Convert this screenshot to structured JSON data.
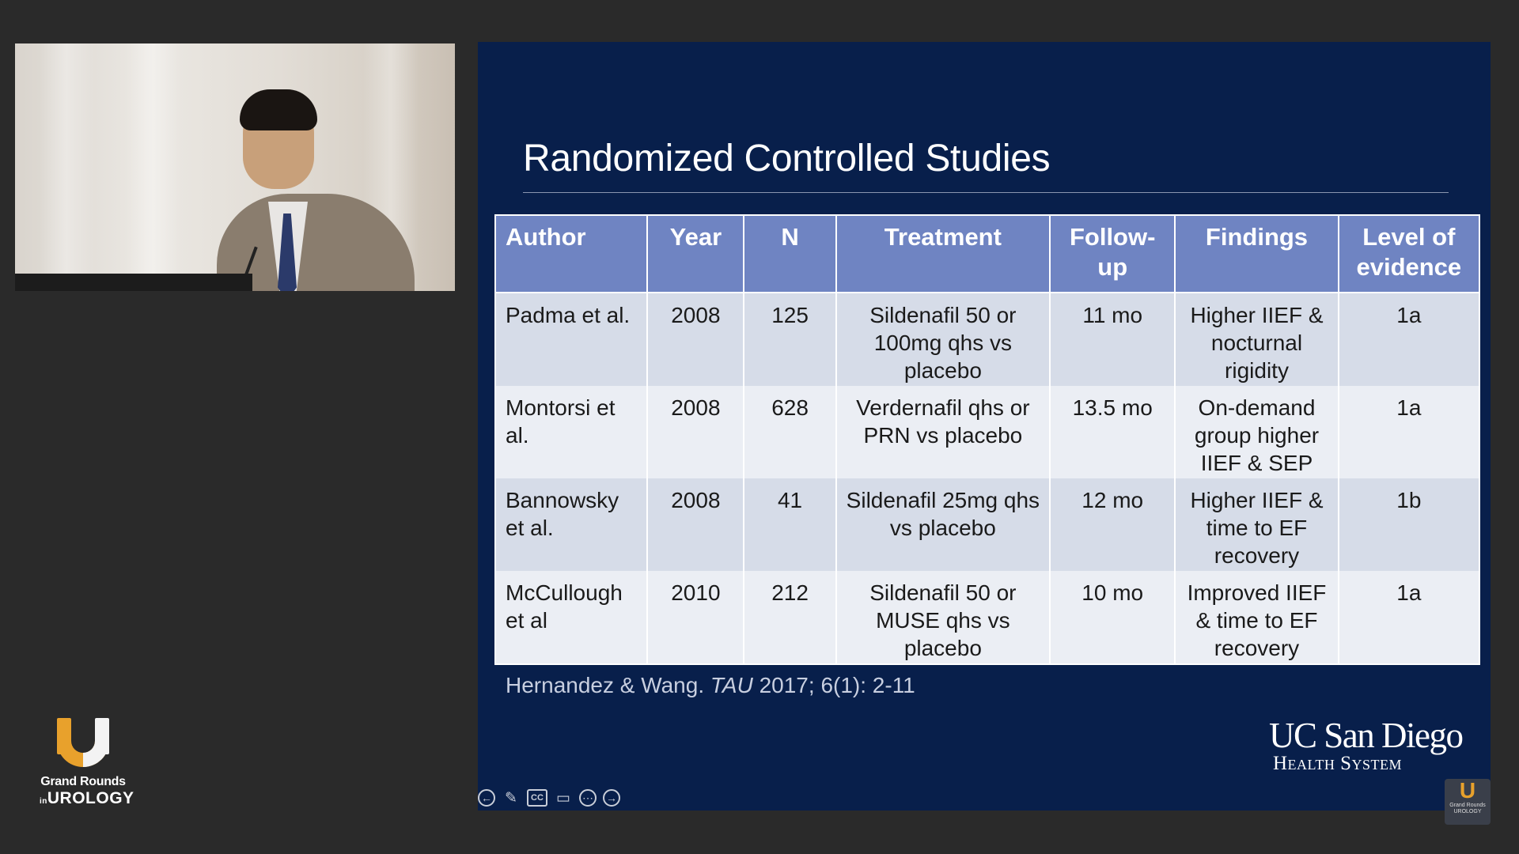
{
  "logo": {
    "line1": "Grand Rounds",
    "line2_prefix": "in",
    "line2": "UROLOGY"
  },
  "slide": {
    "title": "Randomized Controlled Studies",
    "table": {
      "headers": [
        "Author",
        "Year",
        "N",
        "Treatment",
        "Follow-up",
        "Findings",
        "Level of evidence"
      ],
      "rows": [
        [
          "Padma et al.",
          "2008",
          "125",
          "Sildenafil 50 or 100mg qhs vs placebo",
          "11 mo",
          "Higher IIEF & nocturnal rigidity",
          "1a"
        ],
        [
          "Montorsi et al.",
          "2008",
          "628",
          "Verdernafil qhs or PRN vs placebo",
          "13.5 mo",
          "On-demand group higher IIEF & SEP",
          "1a"
        ],
        [
          "Bannowsky et al.",
          "2008",
          "41",
          "Sildenafil 25mg qhs vs placebo",
          "12 mo",
          "Higher IIEF & time to EF recovery",
          "1b"
        ],
        [
          "McCullough et al",
          "2010",
          "212",
          "Sildenafil 50 or MUSE qhs vs placebo",
          "10 mo",
          "Improved IIEF & time to EF recovery",
          "1a"
        ]
      ]
    },
    "citation": {
      "authors": "Hernandez & Wang.",
      "journal": "TAU",
      "ref": "2017; 6(1): 2-11"
    },
    "institution": {
      "name": "UC San Diego",
      "sub": "Health System"
    }
  },
  "controls": {
    "prev": "←",
    "pen": "✎",
    "cc": "CC",
    "video": "▭",
    "more": "⋯",
    "next": "→"
  },
  "corner_logo": {
    "mark": "U",
    "text": "Grand Rounds UROLOGY"
  }
}
